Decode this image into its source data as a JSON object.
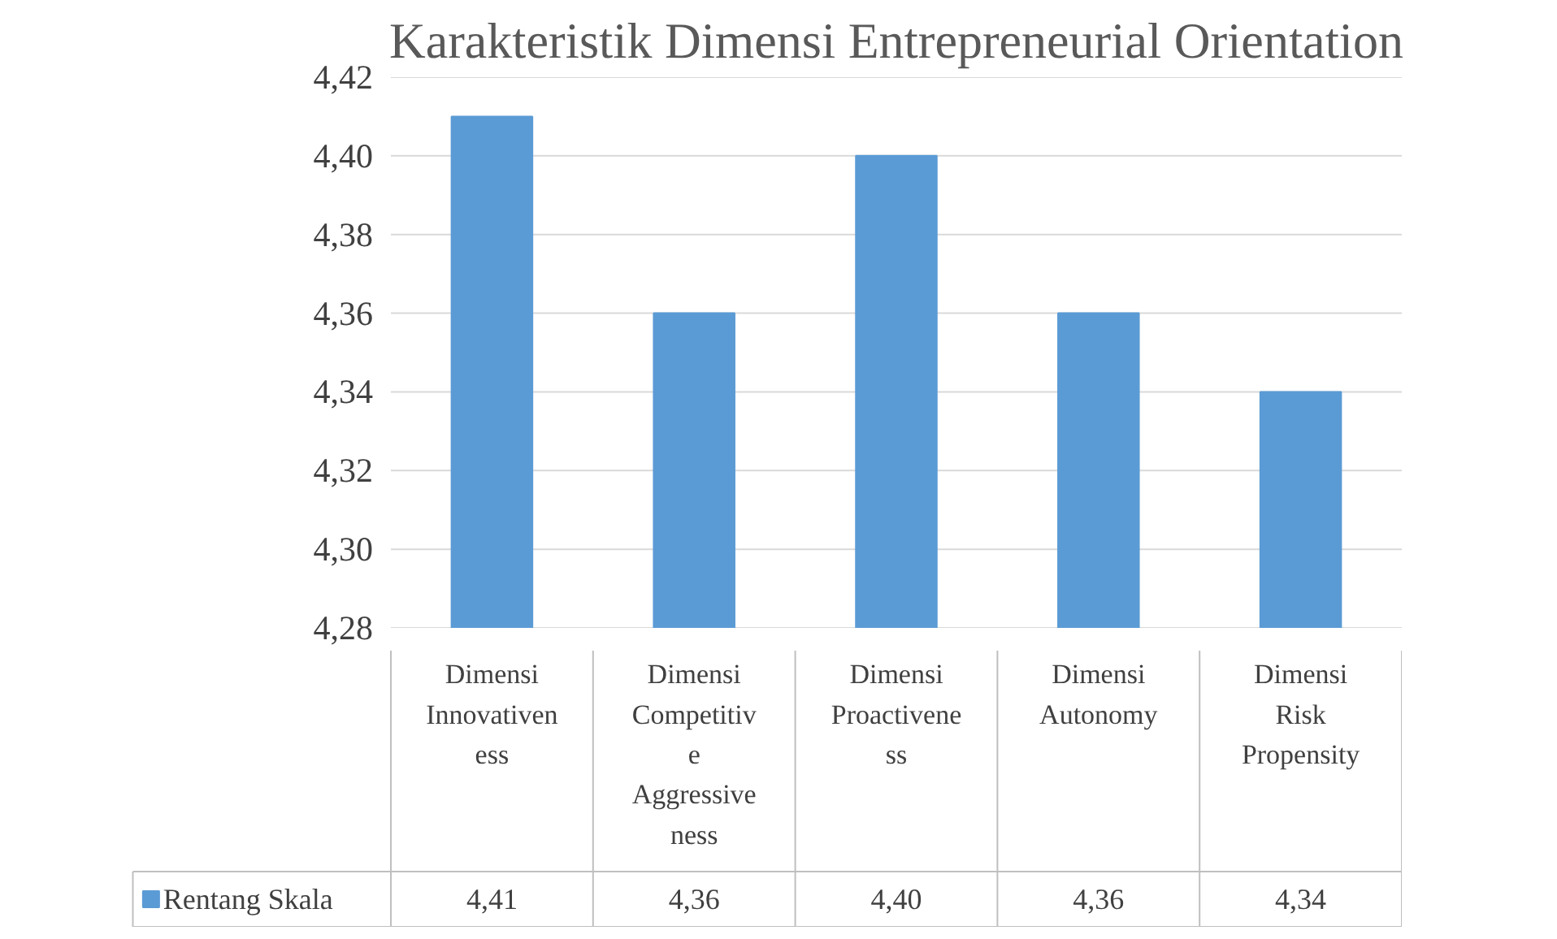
{
  "chart_data": {
    "type": "bar",
    "title": "Karakteristik Dimensi Entrepreneurial Orientation",
    "categories": [
      "Dimensi\nInnovativen\ness",
      "Dimensi\nCompetitiv\ne\nAggressive\nness",
      "Dimensi\nProactivene\nss",
      "Dimensi\nAutonomy",
      "Dimensi\nRisk\nPropensity"
    ],
    "series": [
      {
        "name": "Rentang Skala",
        "color": "#5b9bd5",
        "values": [
          4.41,
          4.36,
          4.4,
          4.36,
          4.34
        ],
        "value_labels": [
          "4,41",
          "4,36",
          "4,40",
          "4,36",
          "4,34"
        ]
      }
    ],
    "ylim": [
      4.28,
      4.42
    ],
    "yticks": [
      {
        "value": 4.28,
        "label": "4,28"
      },
      {
        "value": 4.3,
        "label": "4,30"
      },
      {
        "value": 4.32,
        "label": "4,32"
      },
      {
        "value": 4.34,
        "label": "4,34"
      },
      {
        "value": 4.36,
        "label": "4,36"
      },
      {
        "value": 4.38,
        "label": "4,38"
      },
      {
        "value": 4.4,
        "label": "4,40"
      },
      {
        "value": 4.42,
        "label": "4,42"
      }
    ],
    "grid": "y",
    "legend": "bottom"
  }
}
